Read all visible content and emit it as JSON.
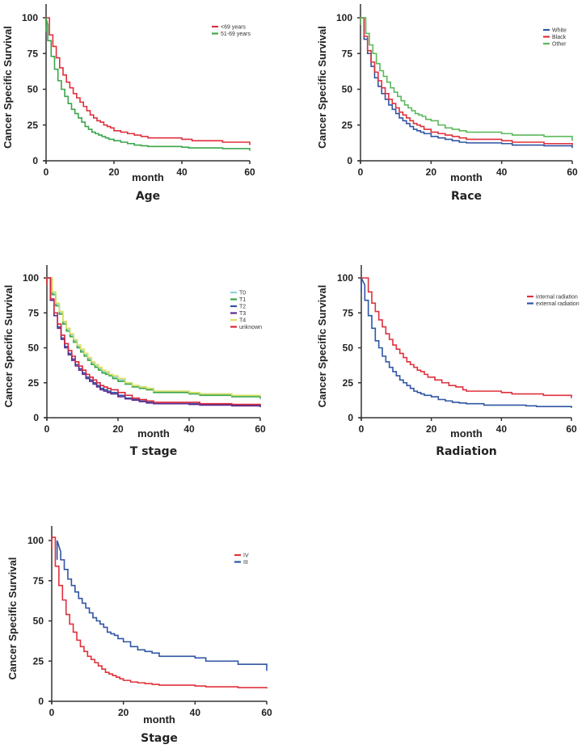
{
  "chart_data": [
    {
      "type": "line",
      "subtype": "kaplan-meier-step",
      "title": "Age",
      "xlabel": "month",
      "ylabel": "Cancer Specific Survival",
      "xlim": [
        0,
        60
      ],
      "ylim": [
        0,
        110
      ],
      "xticks": [
        0,
        20,
        40,
        60
      ],
      "yticks": [
        0,
        25,
        50,
        75,
        100
      ],
      "legend": "top-right",
      "grid": false,
      "series": [
        {
          "name": "<69 years",
          "color": "#e0303c",
          "x": [
            0,
            1,
            2,
            3,
            4,
            5,
            6,
            7,
            8,
            9,
            10,
            11,
            12,
            13,
            14,
            15,
            16,
            17,
            18,
            19,
            20,
            22,
            24,
            26,
            28,
            30,
            40,
            43,
            52,
            60
          ],
          "y": [
            100,
            88,
            80,
            72,
            65,
            60,
            55,
            51,
            47,
            44,
            41,
            38,
            35,
            32,
            30,
            28,
            27,
            25,
            24,
            23,
            21,
            20,
            19,
            18,
            17,
            16,
            15,
            14,
            13,
            11
          ]
        },
        {
          "name": "51-69 years",
          "color": "#3aa64a",
          "x": [
            0,
            0.5,
            1.5,
            2.5,
            3.5,
            4.5,
            5.5,
            6.5,
            7.5,
            8.5,
            9.5,
            10.5,
            11.5,
            12.5,
            13.5,
            14.5,
            15.5,
            16.5,
            17.5,
            18.5,
            20,
            22,
            24,
            26,
            28,
            30,
            40,
            42,
            52,
            60
          ],
          "y": [
            95,
            84,
            73,
            64,
            56,
            50,
            45,
            40,
            36,
            33,
            30,
            27,
            24,
            22,
            20,
            19,
            18,
            17,
            16,
            15,
            14,
            13,
            12,
            11,
            10.5,
            10,
            9.5,
            9,
            8.5,
            7
          ]
        }
      ]
    },
    {
      "type": "line",
      "subtype": "kaplan-meier-step",
      "title": "Race",
      "xlabel": "month",
      "ylabel": "Cancer Specific Survival",
      "xlim": [
        0,
        60
      ],
      "ylim": [
        0,
        110
      ],
      "xticks": [
        0,
        20,
        40,
        60
      ],
      "yticks": [
        0,
        25,
        50,
        75,
        100
      ],
      "legend": "top-right",
      "grid": false,
      "series": [
        {
          "name": "White",
          "color": "#2f55a4",
          "x": [
            0,
            1,
            2,
            3,
            4,
            5,
            6,
            7,
            8,
            9,
            10,
            11,
            12,
            13,
            14,
            15,
            16,
            17,
            18,
            20,
            22,
            24,
            26,
            28,
            30,
            40,
            43,
            52,
            60
          ],
          "y": [
            100,
            85,
            75,
            66,
            58,
            52,
            47,
            43,
            39,
            36,
            33,
            30,
            28,
            26,
            24,
            22,
            21,
            20,
            19,
            17,
            16,
            15,
            14,
            13,
            12.5,
            12,
            11,
            10.5,
            9
          ]
        },
        {
          "name": "Black",
          "color": "#e0303c",
          "x": [
            0,
            1,
            2,
            3,
            4,
            5,
            6,
            7,
            8,
            9,
            10,
            11,
            12,
            13,
            14,
            15,
            16,
            17,
            18,
            20,
            22,
            24,
            26,
            28,
            30,
            40,
            43,
            52,
            60
          ],
          "y": [
            100,
            87,
            77,
            69,
            62,
            56,
            51,
            47,
            43,
            40,
            37,
            34,
            32,
            30,
            28,
            26,
            25,
            24,
            22,
            20,
            19,
            18,
            17,
            16,
            15,
            14,
            13,
            12,
            11
          ]
        },
        {
          "name": "Other",
          "color": "#5cb85c",
          "x": [
            0,
            1.5,
            2.5,
            3.5,
            4.5,
            5.5,
            6.5,
            7.5,
            8.5,
            9.5,
            10.5,
            11.5,
            12.5,
            13.5,
            14.5,
            15.5,
            16.5,
            17.5,
            18.5,
            20,
            22,
            24,
            26,
            28,
            30,
            40,
            43,
            52,
            60
          ],
          "y": [
            100,
            89,
            81,
            75,
            68,
            63,
            59,
            55,
            51,
            48,
            45,
            42,
            39,
            37,
            35,
            33,
            32,
            31,
            29,
            28,
            25,
            23,
            22,
            21,
            20,
            19,
            18,
            17,
            14
          ]
        }
      ]
    },
    {
      "type": "line",
      "subtype": "kaplan-meier-step",
      "title": "T stage",
      "xlabel": "month",
      "ylabel": "Cancer Specific Survival",
      "xlim": [
        0,
        60
      ],
      "ylim": [
        0,
        110
      ],
      "xticks": [
        0,
        20,
        40,
        60
      ],
      "yticks": [
        0,
        25,
        50,
        75,
        100
      ],
      "legend": "top-right",
      "grid": false,
      "series": [
        {
          "name": "T0",
          "color": "#8fd0e0",
          "x": [
            0,
            1.5,
            2.5,
            3.5,
            4.5,
            5.5,
            6.5,
            7.5,
            8.5,
            9.5,
            10.5,
            11.5,
            12.5,
            13.5,
            14.5,
            15.5,
            16.5,
            17.5,
            18.5,
            20,
            22,
            24,
            26,
            28,
            30,
            40,
            43,
            52,
            60
          ],
          "y": [
            100,
            89,
            81,
            75,
            68,
            63,
            59,
            55,
            51,
            48,
            45,
            42,
            39,
            37,
            35,
            33,
            32,
            31,
            29,
            27,
            25,
            23,
            22,
            21,
            19,
            18,
            17,
            16,
            13
          ]
        },
        {
          "name": "T1",
          "color": "#3aa64a",
          "x": [
            0,
            1.5,
            2.5,
            3.5,
            4.5,
            5.5,
            6.5,
            7.5,
            8.5,
            9.5,
            10.5,
            11.5,
            12.5,
            13.5,
            14.5,
            15.5,
            16.5,
            17.5,
            18.5,
            20,
            22,
            24,
            26,
            28,
            30,
            40,
            43,
            52,
            60
          ],
          "y": [
            100,
            88,
            80,
            74,
            67,
            62,
            58,
            54,
            50,
            47,
            44,
            41,
            38,
            36,
            34,
            32,
            31,
            30,
            28,
            26,
            24,
            22,
            21,
            20,
            18,
            17,
            16,
            15,
            14
          ]
        },
        {
          "name": "T2",
          "color": "#2f55a4",
          "x": [
            0,
            1,
            2,
            3,
            4,
            5,
            6,
            7,
            8,
            9,
            10,
            11,
            12,
            13,
            14,
            15,
            16,
            17,
            18,
            20,
            22,
            24,
            26,
            28,
            30,
            40,
            43,
            52,
            60
          ],
          "y": [
            100,
            84,
            73,
            65,
            57,
            51,
            46,
            42,
            38,
            35,
            32,
            29,
            27,
            25,
            23,
            21,
            20,
            19,
            18,
            16,
            14,
            13,
            12,
            11,
            10,
            10,
            9.5,
            9,
            8
          ]
        },
        {
          "name": "T3",
          "color": "#5a2d91",
          "x": [
            0,
            1,
            2,
            3,
            4,
            5,
            6,
            7,
            8,
            9,
            10,
            11,
            12,
            13,
            14,
            15,
            16,
            17,
            18,
            20,
            22,
            24,
            26,
            28,
            30,
            40,
            43,
            52,
            60
          ],
          "y": [
            100,
            84,
            73,
            64,
            56,
            50,
            45,
            41,
            37,
            34,
            31,
            28,
            26,
            24,
            22,
            20,
            19,
            18,
            17,
            15,
            13.5,
            12.5,
            11.5,
            10.5,
            10,
            9.5,
            9,
            8.5,
            7.5
          ]
        },
        {
          "name": "T4",
          "color": "#d8e060",
          "x": [
            0,
            1.5,
            2.5,
            3.5,
            4.5,
            5.5,
            6.5,
            7.5,
            8.5,
            9.5,
            10.5,
            11.5,
            12.5,
            13.5,
            14.5,
            15.5,
            16.5,
            17.5,
            18.5,
            20,
            22,
            24,
            26,
            28,
            30,
            40,
            43,
            52,
            60
          ],
          "y": [
            100,
            90,
            82,
            76,
            69,
            64,
            60,
            56,
            52,
            49,
            46,
            43,
            40,
            38,
            36,
            34,
            33,
            31,
            30,
            28,
            25,
            23,
            22,
            21,
            19,
            18,
            17,
            16,
            15
          ]
        },
        {
          "name": "unknown",
          "color": "#d9263a",
          "x": [
            0,
            1,
            2,
            3,
            4,
            5,
            6,
            7,
            8,
            9,
            10,
            11,
            12,
            13,
            14,
            15,
            16,
            17,
            18,
            20,
            22,
            24,
            26,
            28,
            30,
            40,
            43,
            52,
            60
          ],
          "y": [
            100,
            85,
            75,
            67,
            59,
            53,
            48,
            44,
            40,
            37,
            34,
            31,
            29,
            27,
            25,
            23,
            22,
            21,
            20,
            18,
            16,
            14,
            13,
            12,
            11,
            11,
            10,
            9.5,
            9
          ]
        }
      ]
    },
    {
      "type": "line",
      "subtype": "kaplan-meier-step",
      "title": "Radiation",
      "xlabel": "month",
      "ylabel": "Cancer Specific Survival",
      "xlim": [
        0,
        60
      ],
      "ylim": [
        0,
        110
      ],
      "xticks": [
        0,
        20,
        40,
        60
      ],
      "yticks": [
        0,
        25,
        50,
        75,
        100
      ],
      "legend": "top-right",
      "grid": false,
      "series": [
        {
          "name": "internal radiation",
          "color": "#e0303c",
          "x": [
            0,
            2,
            3,
            4,
            5,
            6,
            7,
            8,
            9,
            10,
            11,
            12,
            13,
            14,
            15,
            16,
            17,
            18,
            19,
            21,
            23,
            25,
            27,
            29,
            30,
            40,
            43,
            52,
            60
          ],
          "y": [
            100,
            90,
            82,
            76,
            70,
            65,
            60,
            56,
            52,
            49,
            46,
            43,
            40,
            38,
            36,
            34,
            33,
            31,
            29,
            27,
            25,
            23,
            22,
            20,
            19,
            18,
            17,
            16,
            14
          ]
        },
        {
          "name": "external radiation",
          "color": "#2f55a4",
          "x": [
            0,
            1,
            2,
            3,
            4,
            5,
            6,
            7,
            8,
            9,
            10,
            11,
            12,
            13,
            14,
            15,
            16,
            17,
            18,
            20,
            22,
            24,
            26,
            28,
            30,
            35,
            40,
            47,
            50,
            60
          ],
          "y": [
            95,
            84,
            73,
            64,
            55,
            50,
            44,
            40,
            36,
            33,
            30,
            27,
            25,
            23,
            21,
            19,
            18,
            17,
            16,
            15,
            13,
            12,
            11,
            10.5,
            10,
            9,
            9,
            8.5,
            8,
            7
          ]
        }
      ]
    },
    {
      "type": "line",
      "subtype": "kaplan-meier-step",
      "title": "Stage",
      "xlabel": "month",
      "ylabel": "Cancer Specific Survival",
      "xlim": [
        0,
        60
      ],
      "ylim": [
        0,
        110
      ],
      "xticks": [
        0,
        20,
        40,
        60
      ],
      "yticks": [
        0,
        25,
        50,
        75,
        100
      ],
      "legend": "top-right",
      "grid": false,
      "series": [
        {
          "name": "IV",
          "color": "#e0303c",
          "x": [
            0,
            1,
            2,
            3,
            4,
            5,
            6,
            7,
            8,
            9,
            10,
            11,
            12,
            13,
            14,
            15,
            16,
            17,
            18,
            19,
            20,
            22,
            24,
            26,
            28,
            30,
            40,
            43,
            52,
            60
          ],
          "y": [
            102,
            84,
            72,
            63,
            54,
            48,
            43,
            38,
            34,
            31,
            28,
            26,
            24,
            22,
            20,
            18,
            17,
            16,
            15,
            14,
            13,
            12,
            11.5,
            11,
            10.5,
            10,
            9.5,
            9,
            8.5,
            8
          ]
        },
        {
          "name": "III",
          "color": "#2f55a4",
          "x": [
            1.5,
            2.5,
            3.5,
            4.5,
            5.5,
            6.5,
            7.5,
            8.5,
            9.5,
            10.5,
            11.5,
            12.5,
            13.5,
            14.5,
            15.5,
            16.5,
            17.5,
            18.5,
            20,
            22,
            24,
            26,
            28,
            30,
            40,
            43,
            52,
            60
          ],
          "y": [
            93,
            88,
            82,
            76,
            72,
            68,
            64,
            61,
            58,
            55,
            52,
            50,
            48,
            46,
            43,
            42,
            41,
            39,
            37,
            34,
            32,
            31,
            30,
            28,
            27,
            25,
            23,
            19
          ]
        }
      ]
    }
  ]
}
